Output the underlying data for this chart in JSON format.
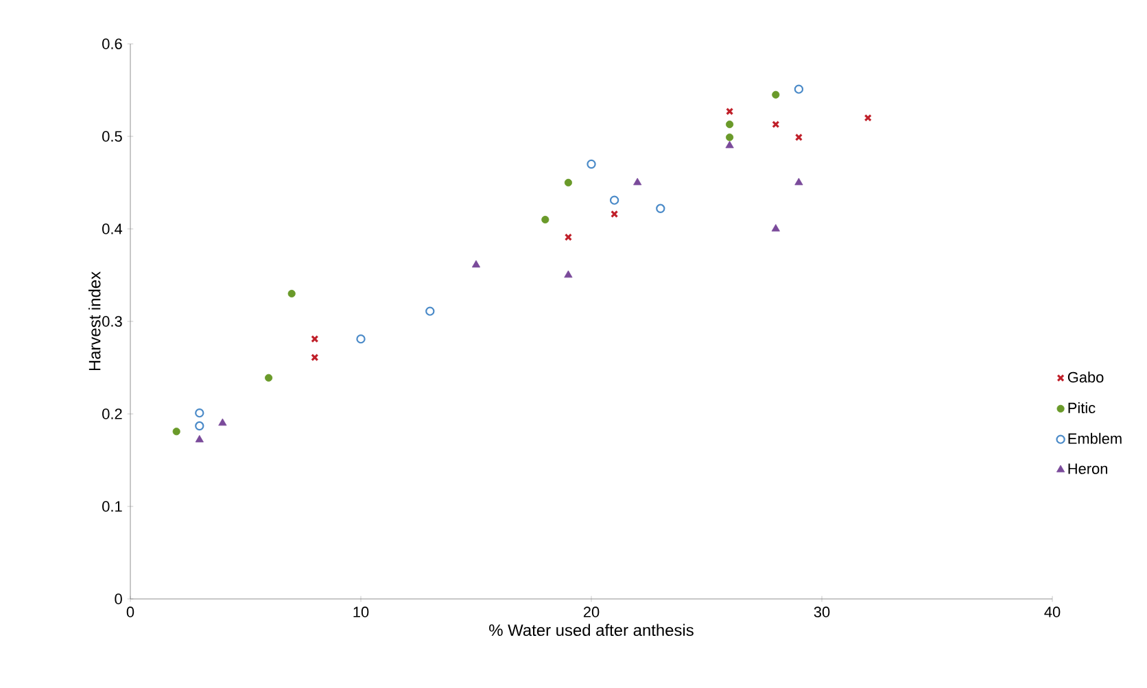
{
  "chart_data": {
    "type": "scatter",
    "xlabel": "% Water used after anthesis",
    "ylabel": "Harvest index",
    "xlim": [
      0,
      40
    ],
    "ylim": [
      0,
      0.6
    ],
    "xticks": [
      0,
      10,
      20,
      30,
      40
    ],
    "yticks": [
      0,
      0.1,
      0.2,
      0.3,
      0.4,
      0.5,
      0.6
    ],
    "grid": false,
    "legend": "right",
    "series": [
      {
        "name": "Gabo",
        "color": "#c0202a",
        "marker": "cross",
        "x": [
          8,
          8,
          19,
          21,
          26,
          28,
          29,
          32
        ],
        "values": [
          0.281,
          0.261,
          0.391,
          0.416,
          0.527,
          0.513,
          0.499,
          0.52
        ]
      },
      {
        "name": "Pitic",
        "color": "#6a9a2a",
        "marker": "circle",
        "x": [
          2,
          6,
          7,
          18,
          19,
          26,
          26,
          28
        ],
        "values": [
          0.181,
          0.239,
          0.33,
          0.41,
          0.45,
          0.513,
          0.499,
          0.545
        ]
      },
      {
        "name": "Emblem",
        "color": "#4a8ac8",
        "marker": "open circle",
        "x": [
          3,
          3,
          10,
          13,
          20,
          21,
          23,
          29
        ],
        "values": [
          0.201,
          0.187,
          0.281,
          0.311,
          0.47,
          0.431,
          0.422,
          0.551
        ]
      },
      {
        "name": "Heron",
        "color": "#7a4a9a",
        "marker": "triangle",
        "x": [
          3,
          4,
          15,
          19,
          22,
          26,
          28,
          29
        ],
        "values": [
          0.172,
          0.19,
          0.361,
          0.35,
          0.45,
          0.49,
          0.4,
          0.45
        ]
      }
    ]
  }
}
